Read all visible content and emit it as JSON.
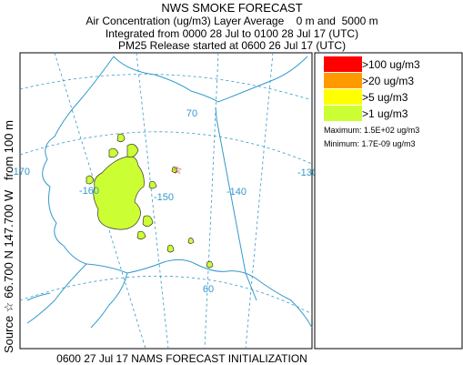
{
  "header": {
    "title": "NWS SMOKE FORECAST",
    "lines": [
      "Air Concentration (ug/m3) Layer Average    0 m and  5000 m",
      "Integrated from 0000 28 Jul to 0100 28 Jul 17 (UTC)",
      "PM25 Release started at 0600 26 Jul 17 (UTC)"
    ]
  },
  "side_label": "Source ☆ 66.700 N 147.700 W   from 100 m",
  "map": {
    "labels": [
      "-170",
      "-160",
      "-150",
      "-140",
      "-130",
      "70",
      "60"
    ]
  },
  "legend": {
    "items": [
      {
        "label": ">100 ug/m3",
        "color": "#ff0000"
      },
      {
        "label": ">20 ug/m3",
        "color": "#ff9900"
      },
      {
        "label": ">5 ug/m3",
        "color": "#ffff00"
      },
      {
        "label": ">1 ug/m3",
        "color": "#ccff33"
      }
    ],
    "maximum": "Maximum: 1.5E+02 ug/m3",
    "minimum": "Minimum: 1.7E-09 ug/m3"
  },
  "footer": "0600 27 Jul 17 NAMS FORECAST INITIALIZATION"
}
